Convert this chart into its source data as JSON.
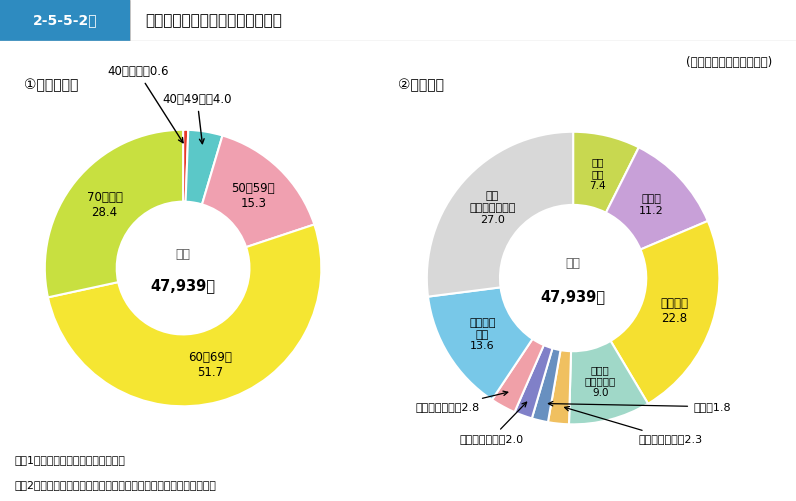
{
  "fig_label": "2-5-5-2図",
  "fig_title": "保護司の年齢層別・職業別構成比",
  "subtitle": "(平成２８年１月１日現在)",
  "chart1_title": "①　年齢層別",
  "chart2_title": "②　職業別",
  "total_label": "総数",
  "total_value": "47,939人",
  "age_labels": [
    "40歳未満",
    "40～49歳",
    "50～59歳",
    "60～69歳",
    "70歳以上"
  ],
  "age_values": [
    0.6,
    4.0,
    15.3,
    51.7,
    28.4
  ],
  "age_colors": [
    "#e8392a",
    "#5bc8c8",
    "#f0a0b0",
    "#f5e632",
    "#c8e040"
  ],
  "job_labels": [
    "農林\n漁業",
    "宗教家",
    "会社員等",
    "商業・\nサービス業",
    "製造・加工業",
    "教員",
    "土木・建設業",
    "社会福祉事業",
    "その他の\n職業",
    "無職\n(主婦を含む)"
  ],
  "job_values": [
    7.4,
    11.2,
    22.8,
    9.0,
    2.3,
    1.8,
    2.0,
    2.8,
    13.6,
    27.0
  ],
  "job_colors": [
    "#c8d850",
    "#c8a0d8",
    "#f5e030",
    "#a0d8c8",
    "#f0c060",
    "#6890c0",
    "#8080c8",
    "#f0a0a8",
    "#78c8e8",
    "#d8d8d8"
  ],
  "footnote1": "注　1　法務省保護局の資料による。",
  "footnote2": "　　2　「その他の職業」は，貸家・アパート経営，医師等である。"
}
